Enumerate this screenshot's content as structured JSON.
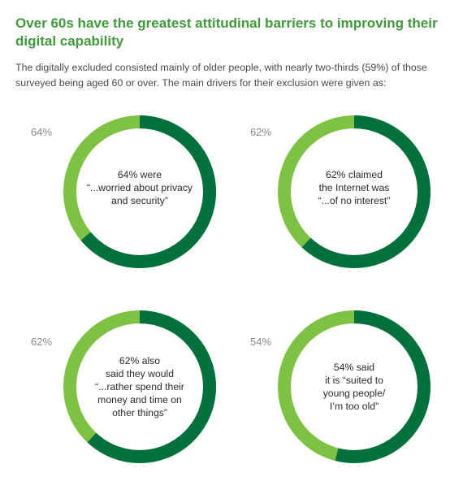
{
  "header": {
    "title": "Over 60s have the greatest attitudinal barriers to improving their digital capability",
    "intro": "The digitally excluded consisted mainly of older people, with nearly two-thirds (59%) of those surveyed being aged 60 or over. The main drivers for their exclusion were given as:"
  },
  "colors": {
    "light_green": "#7dc242",
    "dark_green": "#00703c"
  },
  "chart_data": [
    {
      "type": "pie",
      "value_percent": 64,
      "label": "64%",
      "caption": [
        "64% were",
        "“...worried about privacy",
        "and security”"
      ]
    },
    {
      "type": "pie",
      "value_percent": 62,
      "label": "62%",
      "caption": [
        "62% claimed",
        "the Internet was",
        "“...of no interest”"
      ]
    },
    {
      "type": "pie",
      "value_percent": 62,
      "label": "62%",
      "caption": [
        "62% also",
        "said they would",
        "“...rather spend their",
        "money and time on",
        "other things”"
      ]
    },
    {
      "type": "pie",
      "value_percent": 54,
      "label": "54%",
      "caption": [
        "54% said",
        "it is “suited to",
        "young people/",
        "I’m too old”"
      ]
    }
  ]
}
